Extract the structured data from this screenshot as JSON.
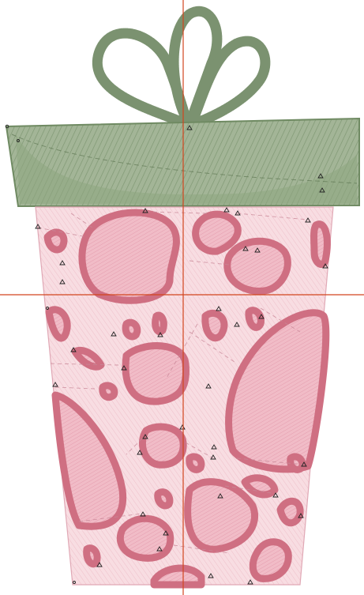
{
  "colors": {
    "background": "#ffffff",
    "lid_fill": "#9aae8c",
    "lid_stitch": "#6f8a62",
    "bow_stitch": "#7b9270",
    "box_fill": "#f7d9df",
    "box_fill_edge": "#f3c8d1",
    "box_stitch": "#e4a9b6",
    "spot_outline": "#cf6f82",
    "spot_fill": "#eeb2bf",
    "crosshair": "#d2451e",
    "marker": "#222222",
    "dash": "#c98898"
  },
  "icons": {
    "crosshair": "crosshair-icon",
    "stitch_markers": "triangle-marker-icon",
    "bow": "bow-icon"
  }
}
